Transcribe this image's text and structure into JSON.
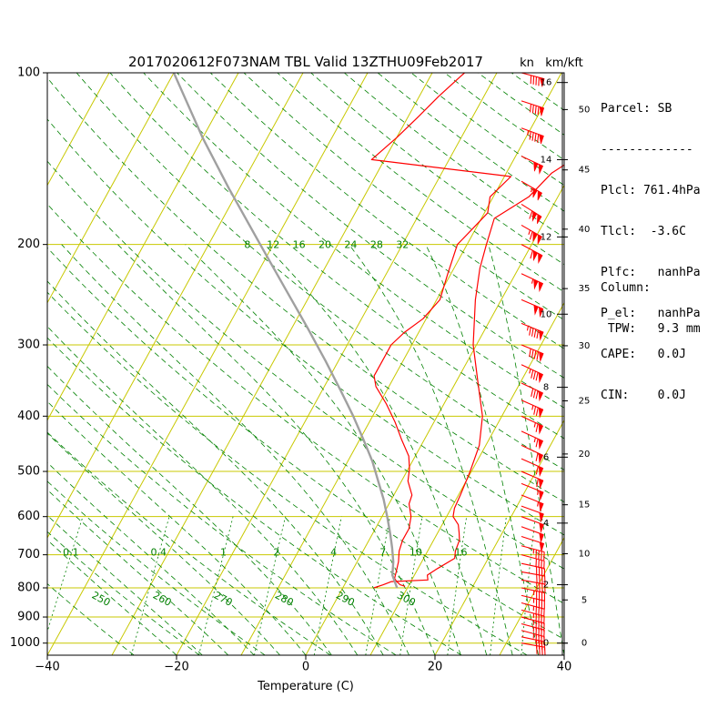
{
  "title": "2017020612F073NAM TBL Valid 13ZTHU09Feb2017",
  "chart_data": {
    "type": "line",
    "title": "2017020612F073NAM TBL Valid 13ZTHU09Feb2017",
    "xlabel": "Temperature (C)",
    "ylabel": "",
    "x_range": [
      -40,
      40
    ],
    "pressure_range_hpa": [
      1050,
      100
    ],
    "y_scale": "log-pressure",
    "x_ticks": [
      "−40",
      "−20",
      "0",
      "20",
      "40"
    ],
    "y_ticks": [
      "100",
      "200",
      "300",
      "400",
      "500",
      "600",
      "700",
      "800",
      "900",
      "1000"
    ],
    "wind_units_label": "kn",
    "height_units_label": "km/kft",
    "km_ticks": [
      {
        "label": "0",
        "hpa": 1000
      },
      {
        "label": "2",
        "hpa": 790
      },
      {
        "label": "4",
        "hpa": 616
      },
      {
        "label": "6",
        "hpa": 472
      },
      {
        "label": "8",
        "hpa": 356
      },
      {
        "label": "10",
        "hpa": 265
      },
      {
        "label": "12",
        "hpa": 194
      },
      {
        "label": "14",
        "hpa": 142
      },
      {
        "label": "16",
        "hpa": 104
      }
    ],
    "kft_ticks": [
      {
        "label": "0",
        "hpa": 1000
      },
      {
        "label": "5",
        "hpa": 840
      },
      {
        "label": "10",
        "hpa": 697
      },
      {
        "label": "15",
        "hpa": 572
      },
      {
        "label": "20",
        "hpa": 466
      },
      {
        "label": "25",
        "hpa": 376
      },
      {
        "label": "30",
        "hpa": 301
      },
      {
        "label": "35",
        "hpa": 239
      },
      {
        "label": "40",
        "hpa": 188
      },
      {
        "label": "45",
        "hpa": 148
      },
      {
        "label": "50",
        "hpa": 116
      }
    ],
    "dry_adiabat_labels": [
      "250",
      "260",
      "270",
      "280",
      "290",
      "300"
    ],
    "mixing_ratio_labels_700": [
      "0.1",
      "0.4",
      "1",
      "2",
      "4",
      "7",
      "10",
      "16"
    ],
    "isotherm_labels_200": [
      "8",
      "12",
      "16",
      "20",
      "24",
      "28",
      "32"
    ],
    "series": [
      {
        "color": "#ff0000",
        "points": [
          [
            795,
            9.5
          ],
          [
            790,
            8.6
          ],
          [
            780,
            7.8
          ],
          [
            770,
            7.2
          ],
          [
            750,
            6.9
          ],
          [
            720,
            6.4
          ],
          [
            690,
            5.6
          ],
          [
            660,
            5.2
          ],
          [
            630,
            5.2
          ],
          [
            600,
            4.5
          ],
          [
            570,
            3.1
          ],
          [
            550,
            2.8
          ],
          [
            520,
            1.0
          ],
          [
            495,
            0.2
          ],
          [
            470,
            -1.0
          ],
          [
            440,
            -3.5
          ],
          [
            410,
            -6.0
          ],
          [
            380,
            -9.0
          ],
          [
            355,
            -12.0
          ],
          [
            340,
            -13.2
          ],
          [
            320,
            -13.2
          ],
          [
            300,
            -13.2
          ],
          [
            285,
            -12.2
          ],
          [
            270,
            -10.5
          ],
          [
            250,
            -9.5
          ],
          [
            225,
            -10.5
          ],
          [
            200,
            -11.5
          ],
          [
            188,
            -10.5
          ],
          [
            176,
            -9.5
          ],
          [
            165,
            -10.5
          ],
          [
            152,
            -9.0
          ],
          [
            142,
            -32.0
          ],
          [
            130,
            -30.0
          ],
          [
            120,
            -28.5
          ],
          [
            110,
            -27.0
          ],
          [
            100,
            -25.0
          ]
        ]
      },
      {
        "color": "#ff0000",
        "points": [
          [
            800,
            4.8
          ],
          [
            790,
            6.0
          ],
          [
            780,
            7.0
          ],
          [
            775,
            12.5
          ],
          [
            760,
            12.0
          ],
          [
            740,
            13.0
          ],
          [
            710,
            14.8
          ],
          [
            690,
            14.3
          ],
          [
            660,
            14.0
          ],
          [
            640,
            13.3
          ],
          [
            620,
            12.5
          ],
          [
            600,
            11.0
          ],
          [
            580,
            10.5
          ],
          [
            550,
            10.3
          ],
          [
            500,
            9.8
          ],
          [
            450,
            9.0
          ],
          [
            400,
            7.0
          ],
          [
            350,
            3.5
          ],
          [
            300,
            -0.5
          ],
          [
            250,
            -4.0
          ],
          [
            220,
            -6.0
          ],
          [
            200,
            -7.0
          ],
          [
            180,
            -8.0
          ],
          [
            165,
            -4.5
          ],
          [
            150,
            -3.0
          ],
          [
            135,
            1.0
          ],
          [
            120,
            4.0
          ],
          [
            110,
            9.0
          ],
          [
            100,
            11.0
          ]
        ]
      },
      {
        "color": "#a0a0a0",
        "points": [
          [
            800,
            8.4
          ],
          [
            760,
            6.6
          ],
          [
            720,
            5.6
          ],
          [
            680,
            4.2
          ],
          [
            640,
            2.6
          ],
          [
            600,
            0.8
          ],
          [
            560,
            -1.2
          ],
          [
            520,
            -3.6
          ],
          [
            480,
            -6.2
          ],
          [
            440,
            -9.4
          ],
          [
            400,
            -13.0
          ],
          [
            360,
            -17.2
          ],
          [
            320,
            -22.0
          ],
          [
            280,
            -27.6
          ],
          [
            240,
            -34.2
          ],
          [
            200,
            -42.0
          ],
          [
            160,
            -51.5
          ],
          [
            130,
            -60.0
          ],
          [
            100,
            -70.0
          ]
        ]
      }
    ],
    "wind_barbs": [
      {
        "hpa": 1000,
        "dir_deg": 280,
        "speed_kt": 40
      },
      {
        "hpa": 975,
        "dir_deg": 282,
        "speed_kt": 42
      },
      {
        "hpa": 950,
        "dir_deg": 285,
        "speed_kt": 45
      },
      {
        "hpa": 925,
        "dir_deg": 285,
        "speed_kt": 45
      },
      {
        "hpa": 900,
        "dir_deg": 285,
        "speed_kt": 45
      },
      {
        "hpa": 875,
        "dir_deg": 285,
        "speed_kt": 45
      },
      {
        "hpa": 850,
        "dir_deg": 285,
        "speed_kt": 45
      },
      {
        "hpa": 825,
        "dir_deg": 283,
        "speed_kt": 45
      },
      {
        "hpa": 800,
        "dir_deg": 282,
        "speed_kt": 43
      },
      {
        "hpa": 775,
        "dir_deg": 280,
        "speed_kt": 42
      },
      {
        "hpa": 750,
        "dir_deg": 280,
        "speed_kt": 40
      },
      {
        "hpa": 725,
        "dir_deg": 282,
        "speed_kt": 40
      },
      {
        "hpa": 700,
        "dir_deg": 285,
        "speed_kt": 42
      },
      {
        "hpa": 675,
        "dir_deg": 285,
        "speed_kt": 45
      },
      {
        "hpa": 650,
        "dir_deg": 288,
        "speed_kt": 48
      },
      {
        "hpa": 625,
        "dir_deg": 290,
        "speed_kt": 50
      },
      {
        "hpa": 600,
        "dir_deg": 290,
        "speed_kt": 50
      },
      {
        "hpa": 575,
        "dir_deg": 290,
        "speed_kt": 52
      },
      {
        "hpa": 550,
        "dir_deg": 292,
        "speed_kt": 55
      },
      {
        "hpa": 525,
        "dir_deg": 292,
        "speed_kt": 55
      },
      {
        "hpa": 500,
        "dir_deg": 293,
        "speed_kt": 58
      },
      {
        "hpa": 475,
        "dir_deg": 294,
        "speed_kt": 60
      },
      {
        "hpa": 450,
        "dir_deg": 295,
        "speed_kt": 62
      },
      {
        "hpa": 425,
        "dir_deg": 295,
        "speed_kt": 65
      },
      {
        "hpa": 400,
        "dir_deg": 295,
        "speed_kt": 65
      },
      {
        "hpa": 375,
        "dir_deg": 294,
        "speed_kt": 75
      },
      {
        "hpa": 350,
        "dir_deg": 295,
        "speed_kt": 80
      },
      {
        "hpa": 325,
        "dir_deg": 295,
        "speed_kt": 85
      },
      {
        "hpa": 300,
        "dir_deg": 292,
        "speed_kt": 90
      },
      {
        "hpa": 275,
        "dir_deg": 292,
        "speed_kt": 95
      },
      {
        "hpa": 250,
        "dir_deg": 293,
        "speed_kt": 100
      },
      {
        "hpa": 225,
        "dir_deg": 295,
        "speed_kt": 105
      },
      {
        "hpa": 200,
        "dir_deg": 298,
        "speed_kt": 110
      },
      {
        "hpa": 185,
        "dir_deg": 300,
        "speed_kt": 115
      },
      {
        "hpa": 170,
        "dir_deg": 302,
        "speed_kt": 110
      },
      {
        "hpa": 155,
        "dir_deg": 300,
        "speed_kt": 105
      },
      {
        "hpa": 140,
        "dir_deg": 295,
        "speed_kt": 100
      },
      {
        "hpa": 125,
        "dir_deg": 290,
        "speed_kt": 95
      },
      {
        "hpa": 112,
        "dir_deg": 288,
        "speed_kt": 90
      },
      {
        "hpa": 100,
        "dir_deg": 285,
        "speed_kt": 90
      }
    ]
  },
  "parcel_info": {
    "line1": "Parcel: SB",
    "line2": "-------------",
    "line3": "Plcl: 761.4hPa",
    "line4": "Tlcl:  -3.6C",
    "line5": "Plfc:   nanhPa",
    "line6": "P_el:   nanhPa",
    "line7": "CAPE:   0.0J",
    "line8": "CIN:    0.0J"
  },
  "column_info": {
    "line1": "Column:",
    "line2": " TPW:   9.3 mm"
  },
  "colors": {
    "isotherm": "#c8c800",
    "isobar": "#c8c800",
    "dry_adiabat": "#008000",
    "mixing_ratio": "#008000",
    "temperature": "#ff0000",
    "dewpoint": "#ff0000",
    "parcel": "#a0a0a0",
    "wind_barb": "#ff0000"
  }
}
